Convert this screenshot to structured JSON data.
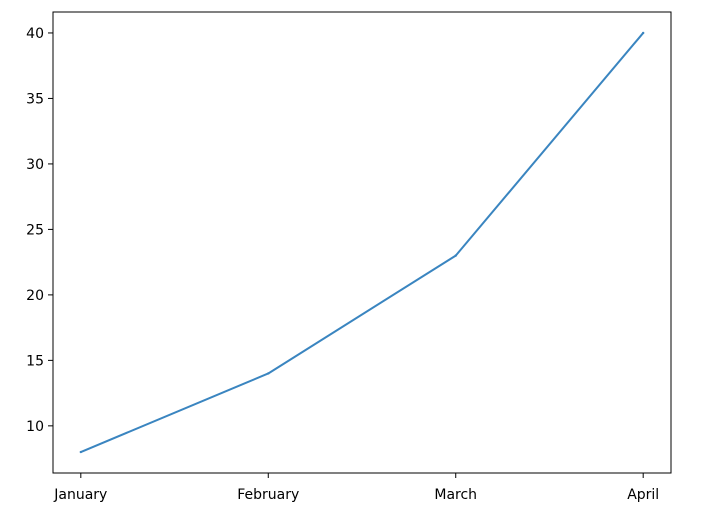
{
  "chart_data": {
    "type": "line",
    "title": "",
    "xlabel": "",
    "ylabel": "",
    "categories": [
      "January",
      "February",
      "March",
      "April"
    ],
    "series": [
      {
        "values": [
          8,
          14,
          23,
          40
        ],
        "color": "#3a85c0"
      }
    ],
    "ylim": [
      6.4,
      41.6
    ],
    "yticks": [
      10,
      15,
      20,
      25,
      30,
      35,
      40
    ],
    "grid": false,
    "legend": "none"
  }
}
